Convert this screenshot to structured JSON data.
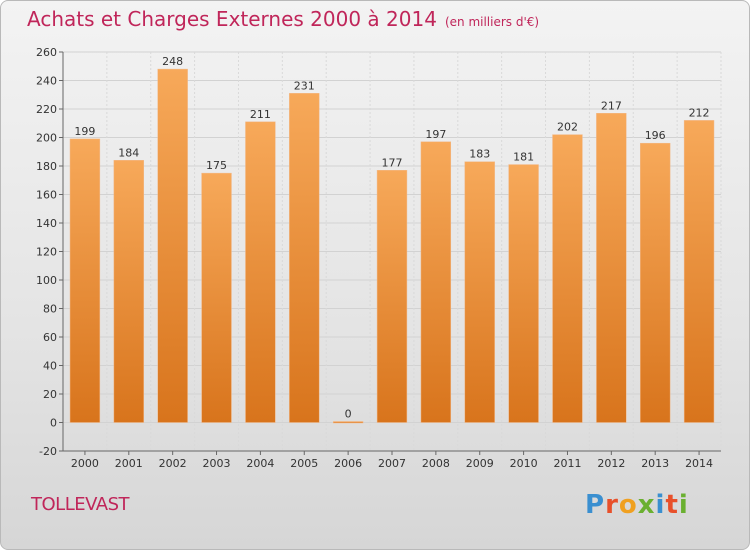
{
  "header": {
    "title": "Achats et Charges Externes 2000 à 2014",
    "subtitle": "(en milliers d'€)"
  },
  "commune": "TOLLEVAST",
  "logo": {
    "letters": [
      "P",
      "r",
      "o",
      "x",
      "i",
      "t",
      "i"
    ],
    "colors": [
      "#3a8fd0",
      "#e8502a",
      "#f0a020",
      "#6ab030",
      "#3a8fd0",
      "#e8502a",
      "#6ab030"
    ]
  },
  "colors": {
    "bar_light": "#f7a95a",
    "bar_dark": "#d8741c",
    "title": "#c0265a"
  },
  "chart_data": {
    "type": "bar",
    "title": "Achats et Charges Externes 2000 à 2014",
    "subtitle": "(en milliers d'€)",
    "categories": [
      "2000",
      "2001",
      "2002",
      "2003",
      "2004",
      "2005",
      "2006",
      "2007",
      "2008",
      "2009",
      "2010",
      "2011",
      "2012",
      "2013",
      "2014"
    ],
    "values": [
      199,
      184,
      248,
      175,
      211,
      231,
      0,
      177,
      197,
      183,
      181,
      202,
      217,
      196,
      212
    ],
    "ylim": [
      -20,
      260
    ],
    "yticks": [
      -20,
      0,
      20,
      40,
      60,
      80,
      100,
      120,
      140,
      160,
      180,
      200,
      220,
      240,
      260
    ],
    "grid": true,
    "xlabel": "",
    "ylabel": ""
  }
}
